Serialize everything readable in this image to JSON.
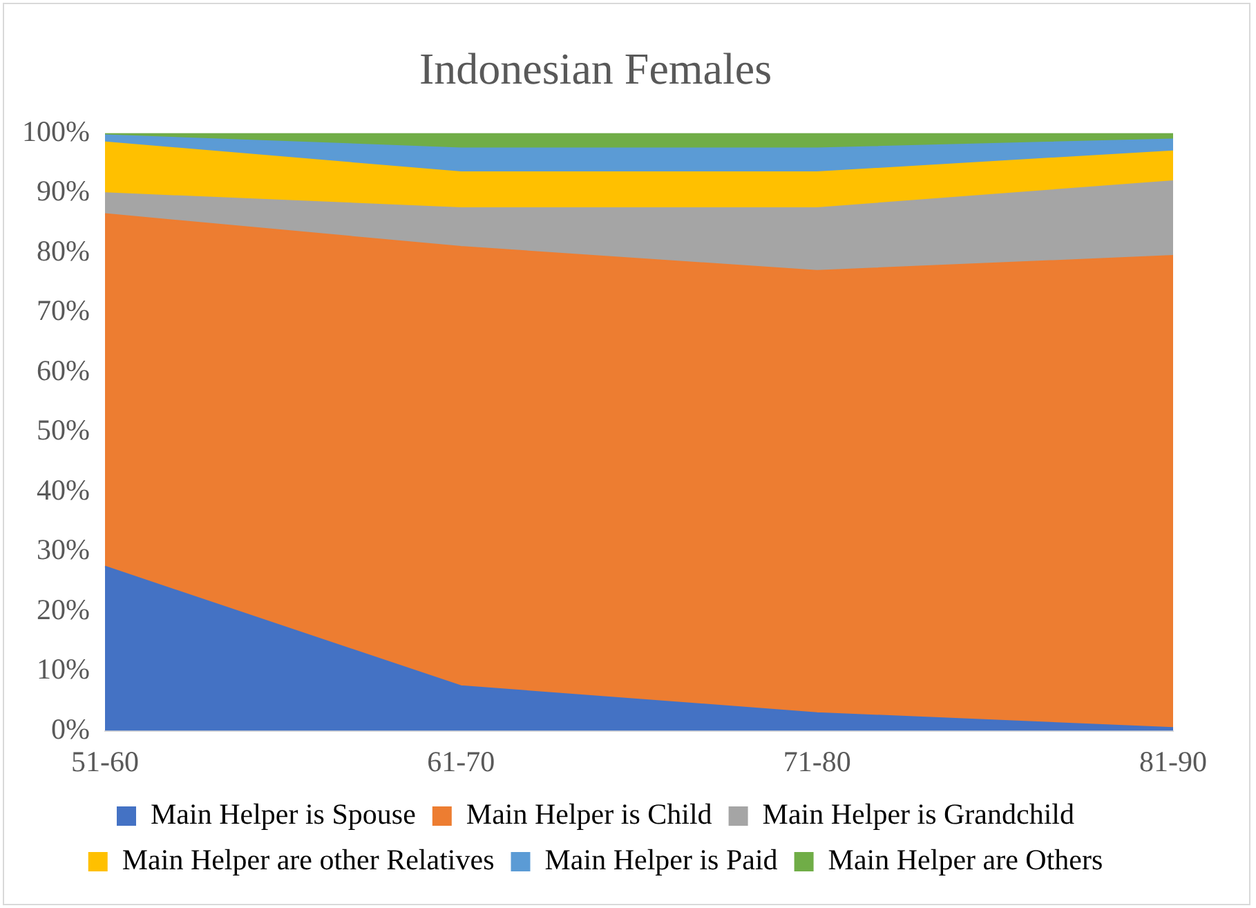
{
  "chart_data": {
    "type": "area",
    "title": "Indonesian Females",
    "stacked": true,
    "categories": [
      "51-60",
      "61-70",
      "71-80",
      "81-90"
    ],
    "series": [
      {
        "name": "Main Helper is Spouse",
        "color": "#4472c4",
        "values": [
          27.5,
          7.5,
          3,
          0.5
        ]
      },
      {
        "name": "Main Helper is Child",
        "color": "#ed7d31",
        "values": [
          59,
          73.5,
          74,
          79
        ]
      },
      {
        "name": "Main Helper is Grandchild",
        "color": "#a5a5a5",
        "values": [
          3.5,
          6.5,
          10.5,
          12.5
        ]
      },
      {
        "name": "Main Helper are other Relatives",
        "color": "#ffc000",
        "values": [
          8.5,
          6,
          6,
          5
        ]
      },
      {
        "name": "Main Helper is Paid",
        "color": "#5b9bd5",
        "values": [
          1.2,
          4,
          4,
          2
        ]
      },
      {
        "name": "Main Helper are Others",
        "color": "#70ad47",
        "values": [
          0.3,
          2.5,
          2.5,
          1
        ]
      }
    ],
    "ylim": [
      0,
      100
    ],
    "yticks": [
      {
        "value": 0,
        "label": "0%"
      },
      {
        "value": 10,
        "label": "10%"
      },
      {
        "value": 20,
        "label": "20%"
      },
      {
        "value": 30,
        "label": "30%"
      },
      {
        "value": 40,
        "label": "40%"
      },
      {
        "value": 50,
        "label": "50%"
      },
      {
        "value": 60,
        "label": "60%"
      },
      {
        "value": 70,
        "label": "70%"
      },
      {
        "value": 80,
        "label": "80%"
      },
      {
        "value": 90,
        "label": "90%"
      },
      {
        "value": 100,
        "label": "100%"
      }
    ],
    "grid": false,
    "legend": "bottom"
  }
}
